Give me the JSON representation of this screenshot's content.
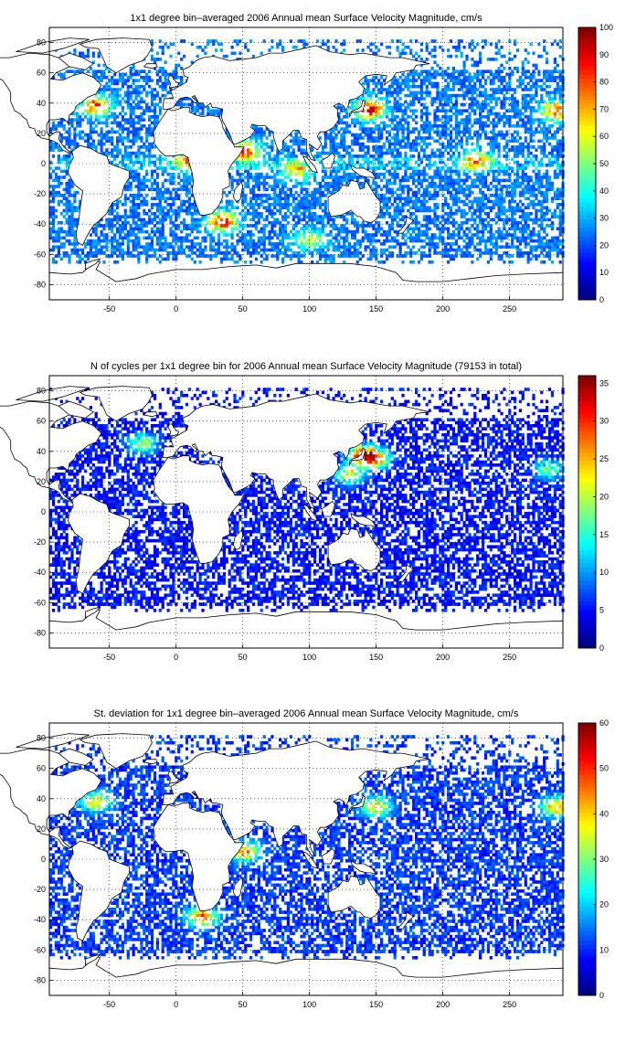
{
  "chart_data": [
    {
      "type": "heatmap",
      "title": "1x1 degree bin–averaged 2006 Annual mean Surface Velocity Magnitude, cm/s",
      "xlabel": "",
      "ylabel": "",
      "xlim": [
        -95,
        290
      ],
      "ylim": [
        -90,
        90
      ],
      "xticks": [
        -50,
        0,
        50,
        100,
        150,
        200,
        250
      ],
      "yticks": [
        -80,
        -60,
        -40,
        -20,
        0,
        20,
        40,
        60,
        80
      ],
      "grid": true,
      "colormap": "jet",
      "colorbar": {
        "min": 0,
        "max": 100,
        "ticks": [
          0,
          10,
          20,
          30,
          40,
          50,
          60,
          70,
          80,
          90,
          100
        ]
      },
      "colorbar_colors": [
        "#00008f",
        "#0000ff",
        "#0080ff",
        "#00ffff",
        "#80ff80",
        "#ffff00",
        "#ff8000",
        "#ff0000",
        "#800000"
      ],
      "hotspots": [
        {
          "lon": 285,
          "lat": 35,
          "value": 75
        },
        {
          "lon": -60,
          "lat": 38,
          "value": 70
        },
        {
          "lon": 145,
          "lat": 36,
          "value": 80
        },
        {
          "lon": 52,
          "lat": 8,
          "value": 75
        },
        {
          "lon": 35,
          "lat": -38,
          "value": 80
        },
        {
          "lon": 10,
          "lat": 2,
          "value": 55
        },
        {
          "lon": 225,
          "lat": 2,
          "value": 60
        },
        {
          "lon": 90,
          "lat": -5,
          "value": 50
        },
        {
          "lon": 100,
          "lat": -50,
          "value": 45
        }
      ]
    },
    {
      "type": "heatmap",
      "title": "N of cycles per 1x1 degree bin for 2006 Annual mean Surface Velocity Magnitude (79153 in total)",
      "xlabel": "",
      "ylabel": "",
      "xlim": [
        -95,
        290
      ],
      "ylim": [
        -90,
        90
      ],
      "xticks": [
        -50,
        0,
        50,
        100,
        150,
        200,
        250
      ],
      "yticks": [
        -80,
        -60,
        -40,
        -20,
        0,
        20,
        40,
        60,
        80
      ],
      "grid": true,
      "colormap": "jet",
      "colorbar": {
        "min": 0,
        "max": 36,
        "ticks": [
          0,
          5,
          10,
          15,
          20,
          25,
          30,
          35
        ]
      },
      "colorbar_colors": [
        "#00008f",
        "#0000ff",
        "#0080ff",
        "#00ffff",
        "#80ff80",
        "#ffff00",
        "#ff8000",
        "#ff0000",
        "#800000"
      ],
      "hotspots": [
        {
          "lon": 140,
          "lat": 38,
          "value": 28
        },
        {
          "lon": 150,
          "lat": 35,
          "value": 22
        },
        {
          "lon": -25,
          "lat": 45,
          "value": 18
        },
        {
          "lon": 130,
          "lat": 25,
          "value": 20
        },
        {
          "lon": 280,
          "lat": 28,
          "value": 15
        }
      ]
    },
    {
      "type": "heatmap",
      "title": "St. deviation for 1x1 degree bin–averaged 2006 Annual mean Surface Velocity Magnitude, cm/s",
      "xlabel": "",
      "ylabel": "",
      "xlim": [
        -95,
        290
      ],
      "ylim": [
        -90,
        90
      ],
      "xticks": [
        -50,
        0,
        50,
        100,
        150,
        200,
        250
      ],
      "yticks": [
        -80,
        -60,
        -40,
        -20,
        0,
        20,
        40,
        60,
        80
      ],
      "grid": true,
      "colormap": "jet",
      "colorbar": {
        "min": 0,
        "max": 60,
        "ticks": [
          0,
          10,
          20,
          30,
          40,
          50,
          60
        ]
      },
      "colorbar_colors": [
        "#00008f",
        "#0000ff",
        "#0080ff",
        "#00ffff",
        "#80ff80",
        "#ffff00",
        "#ff8000",
        "#ff0000",
        "#800000"
      ],
      "hotspots": [
        {
          "lon": 285,
          "lat": 35,
          "value": 40
        },
        {
          "lon": 150,
          "lat": 35,
          "value": 35
        },
        {
          "lon": -60,
          "lat": 38,
          "value": 35
        },
        {
          "lon": 52,
          "lat": 5,
          "value": 40
        },
        {
          "lon": 20,
          "lat": -38,
          "value": 45
        }
      ]
    }
  ]
}
